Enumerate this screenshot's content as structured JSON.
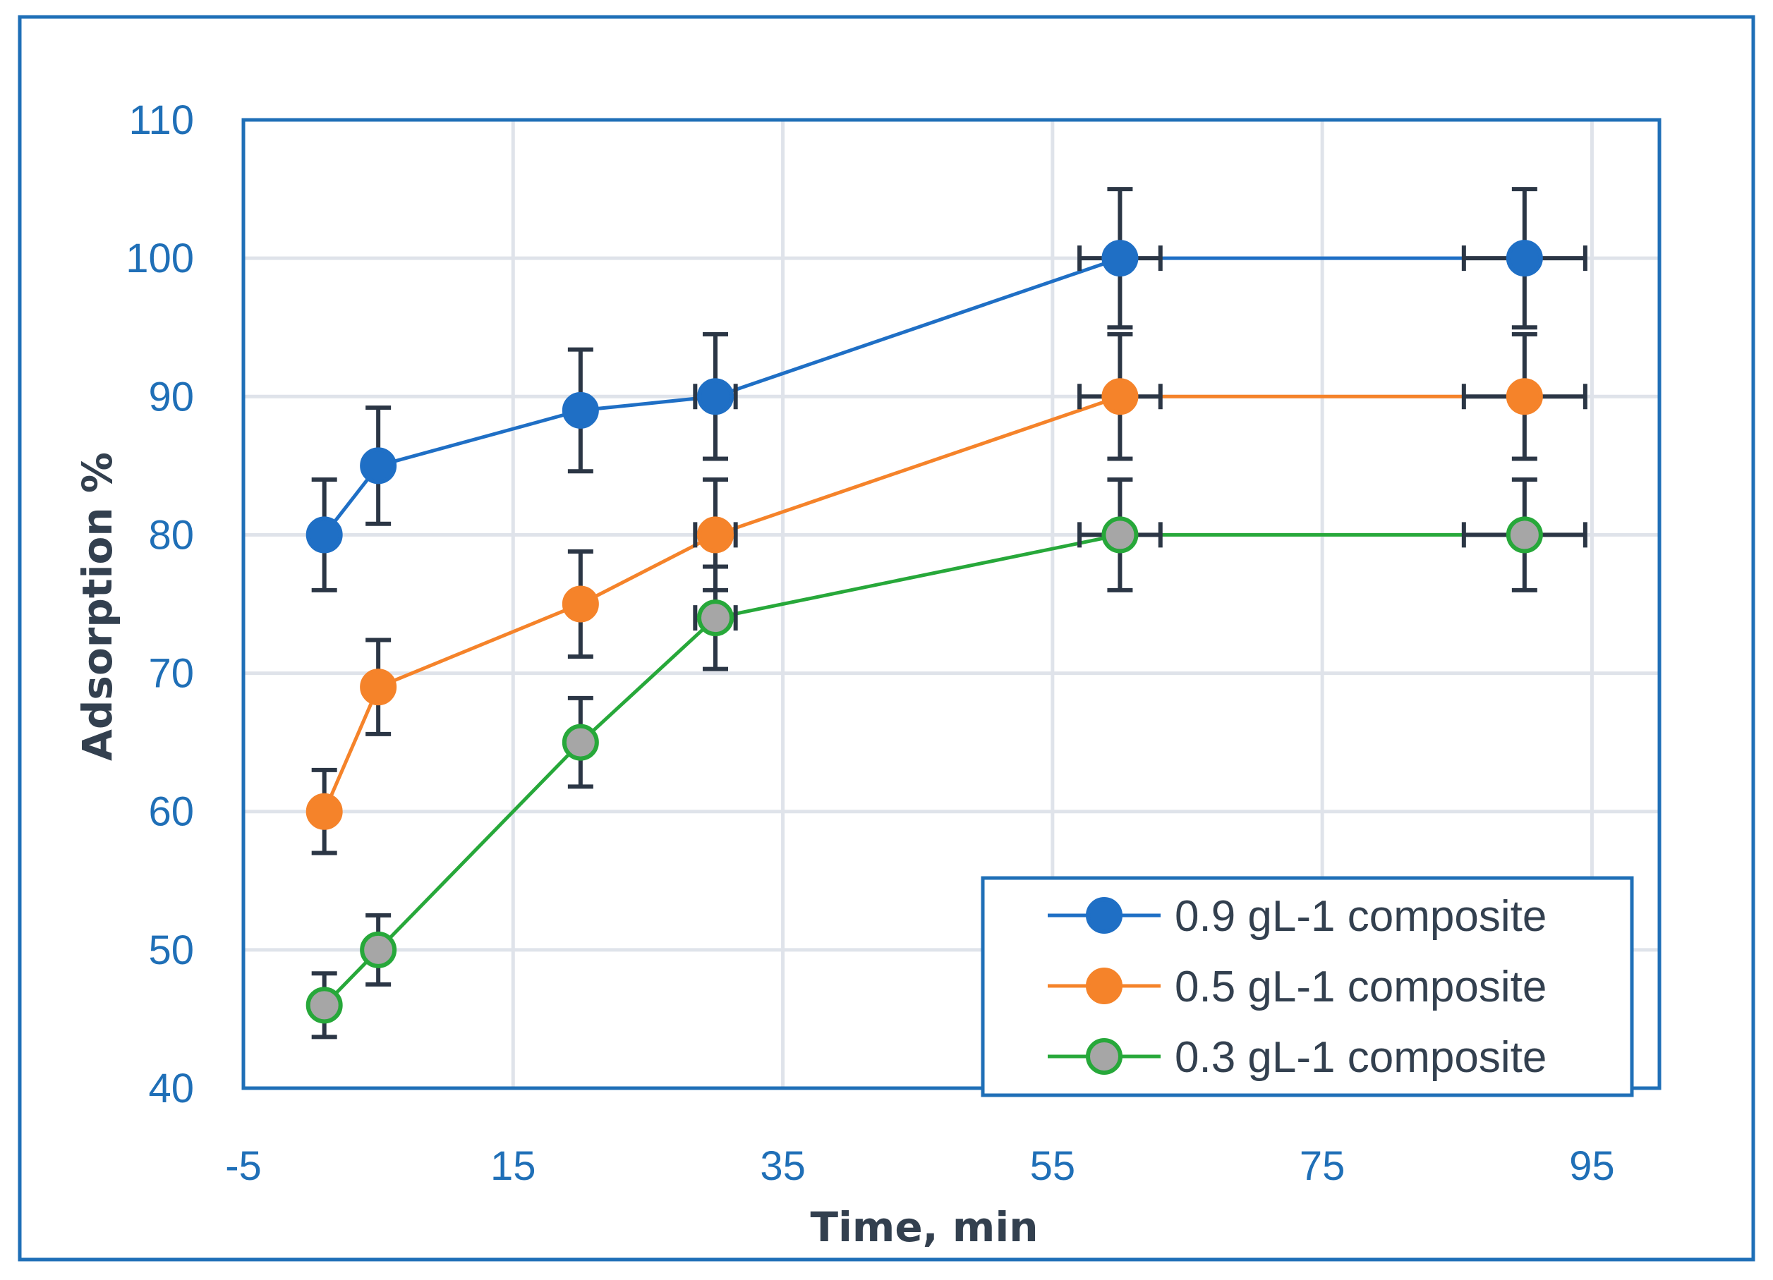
{
  "chart_data": {
    "type": "line",
    "title": "",
    "xlabel": "Time, min",
    "ylabel": "Adsorption %",
    "xlim": [
      -5,
      100
    ],
    "ylim": [
      40,
      110
    ],
    "xticks": [
      -5,
      15,
      35,
      55,
      75,
      95
    ],
    "yticks": [
      40,
      50,
      60,
      70,
      80,
      90,
      100,
      110
    ],
    "x_tick_labels": [
      "-5",
      "15",
      "35",
      "55",
      "75",
      "95"
    ],
    "y_tick_labels": [
      "40",
      "50",
      "60",
      "70",
      "80",
      "90",
      "100",
      "110"
    ],
    "grid": true,
    "legend_position": "bottom-right",
    "x": [
      1,
      5,
      20,
      30,
      60,
      90
    ],
    "series": [
      {
        "name": "0.9 gL-1 composite",
        "values": [
          80,
          85,
          89,
          90,
          100,
          100
        ],
        "line_color": "#1f6fc5",
        "marker_fill": "#1f6fc5",
        "marker_stroke": "#1f6fc5",
        "y_error": [
          4,
          4.2,
          4.4,
          4.5,
          5,
          5
        ],
        "x_error": [
          0,
          0,
          0,
          1.5,
          3,
          4.5
        ]
      },
      {
        "name": "0.5 gL-1 composite",
        "values": [
          60,
          69,
          75,
          80,
          90,
          90
        ],
        "line_color": "#f5832a",
        "marker_fill": "#f5832a",
        "marker_stroke": "#f5832a",
        "y_error": [
          3,
          3.4,
          3.8,
          4,
          4.5,
          4.5
        ],
        "x_error": [
          0,
          0,
          0,
          1.5,
          3,
          4.5
        ]
      },
      {
        "name": "0.3 gL-1 composite",
        "values": [
          46,
          50,
          65,
          74,
          80,
          80
        ],
        "line_color": "#27a83a",
        "marker_fill": "#a6a6a6",
        "marker_stroke": "#27a83a",
        "y_error": [
          2.3,
          2.5,
          3.2,
          3.7,
          4,
          4
        ],
        "x_error": [
          0,
          0,
          0,
          1.5,
          3,
          4.5
        ]
      }
    ]
  },
  "colors": {
    "frame": "#1f6fb7",
    "grid": "#dfe3ea",
    "error_bar": "#2b3645"
  }
}
